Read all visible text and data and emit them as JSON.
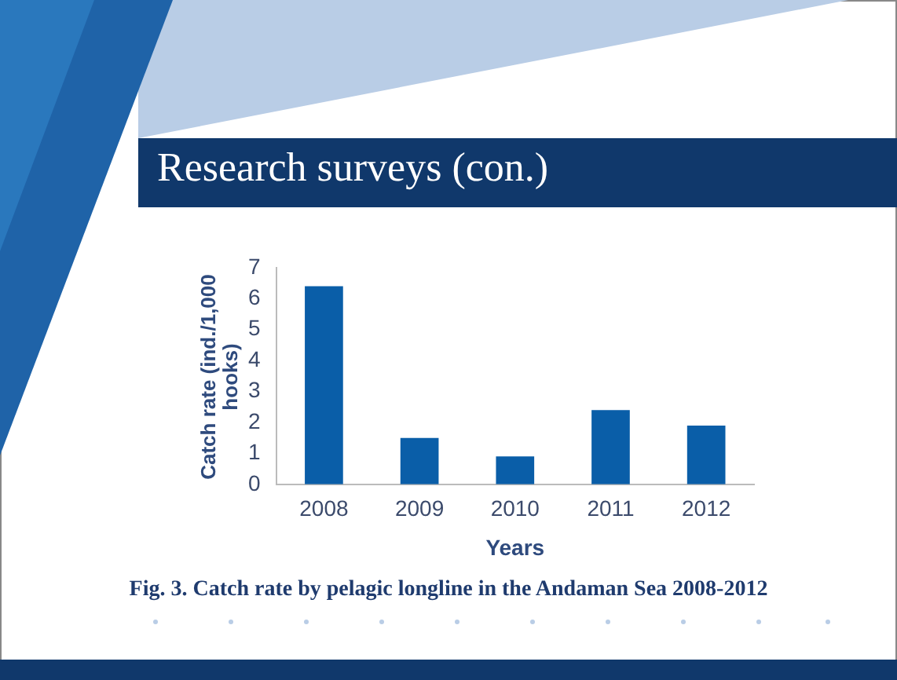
{
  "chart_data": {
    "type": "bar",
    "title": "Research surveys (con.)",
    "xlabel": "Years",
    "ylabel": "Catch rate (ind./1,000 hooks)",
    "categories": [
      "2008",
      "2009",
      "2010",
      "2011",
      "2012"
    ],
    "values": [
      6.4,
      1.5,
      0.9,
      2.4,
      1.9
    ],
    "color": "#0a5ea8",
    "ylim": [
      0,
      7
    ],
    "yticks": [
      0,
      1,
      2,
      3,
      4,
      5,
      6,
      7
    ],
    "grid": false,
    "legend": false,
    "annotations": [
      "Fig. 3. Catch rate by pelagic longline in the Andaman Sea 2008-2012"
    ]
  }
}
